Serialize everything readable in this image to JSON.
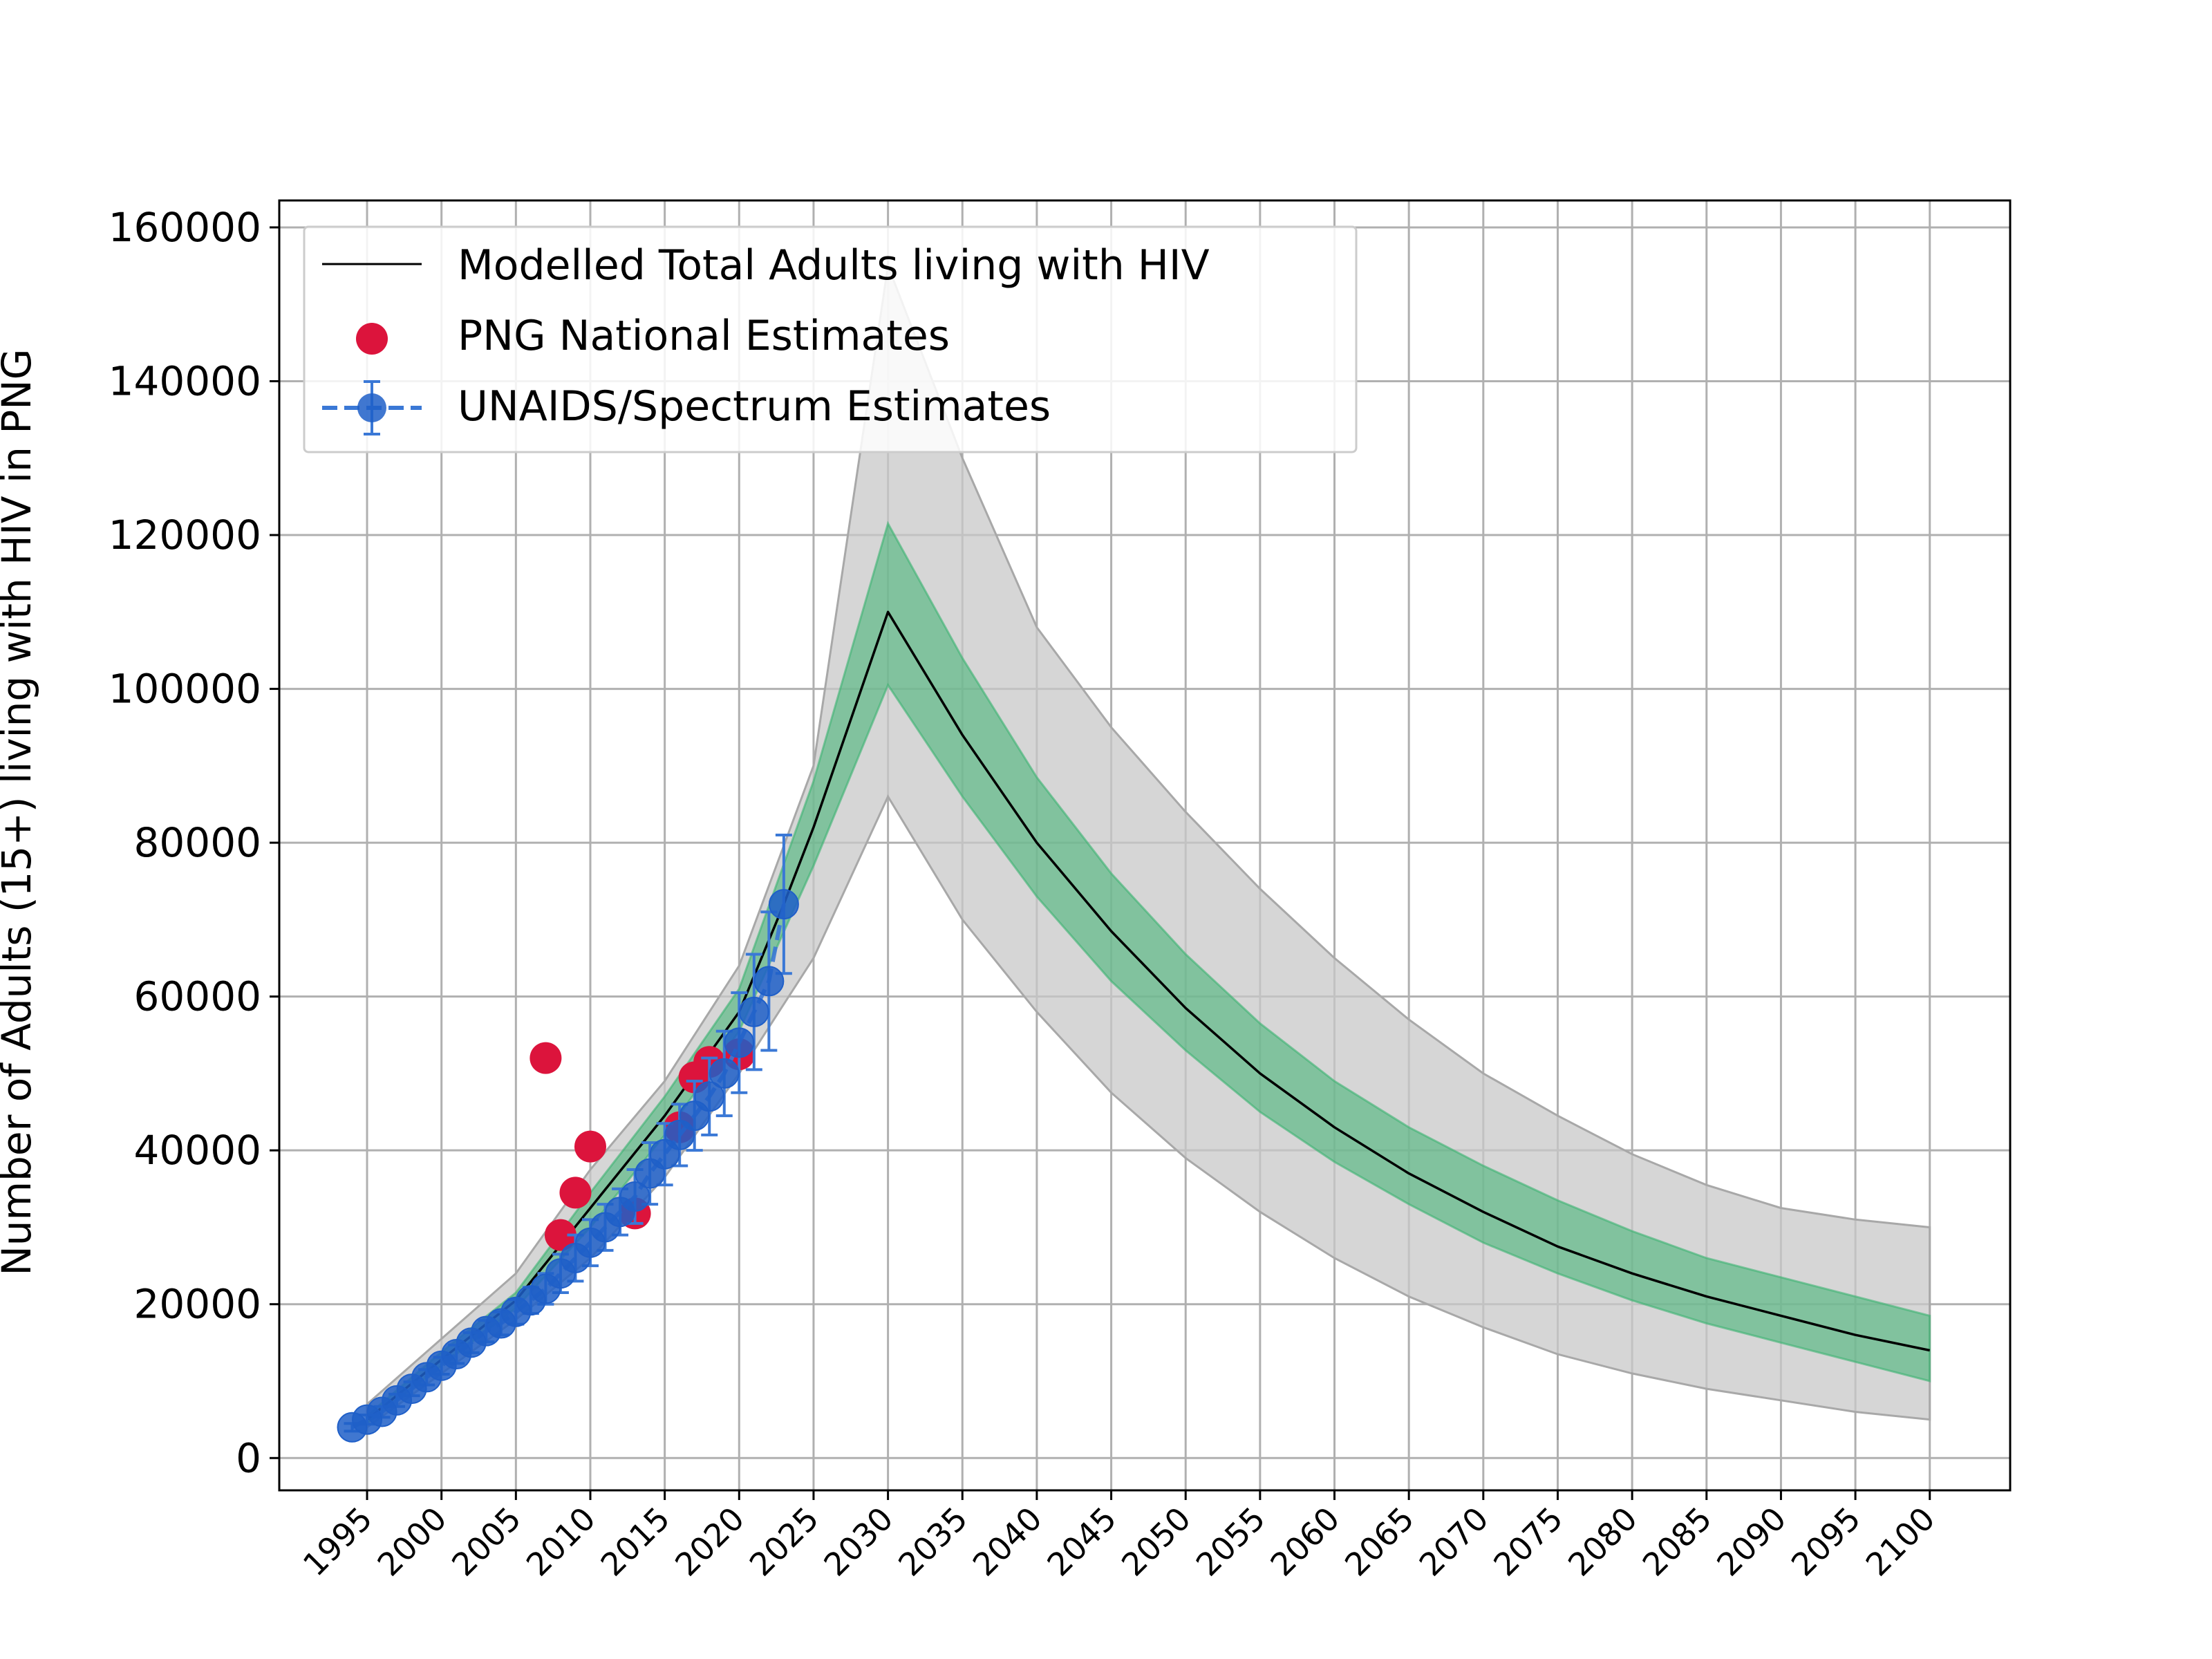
{
  "chart_data": {
    "type": "line",
    "title": "",
    "xlabel": "",
    "ylabel": "Number of Adults (15+) living with HIV in PNG",
    "xlim": [
      1989.1,
      2105.4
    ],
    "ylim": [
      -4200,
      163500
    ],
    "grid": true,
    "legend_position": "top-left",
    "x_ticks": [
      1995,
      2000,
      2005,
      2010,
      2015,
      2020,
      2025,
      2030,
      2035,
      2040,
      2045,
      2050,
      2055,
      2060,
      2065,
      2070,
      2075,
      2080,
      2085,
      2090,
      2095,
      2100
    ],
    "y_ticks": [
      0,
      20000,
      40000,
      60000,
      80000,
      100000,
      120000,
      140000,
      160000
    ],
    "colors": {
      "model_line": "#000000",
      "outer_band": "#c8c8c8",
      "inner_band": "#3cb371",
      "png_points": "#dc143c",
      "unaids_points": "#1f5fc8",
      "unaids_line": "#3a78d6"
    },
    "legend": [
      {
        "key": "model",
        "label": "Modelled Total Adults living with HIV"
      },
      {
        "key": "png",
        "label": "PNG National Estimates"
      },
      {
        "key": "unaids",
        "label": "UNAIDS/Spectrum Estimates"
      }
    ],
    "series": [
      {
        "name": "Modelled Total Adults living with HIV",
        "kind": "line",
        "x": [
          1995,
          2000,
          2005,
          2010,
          2015,
          2020,
          2023,
          2025,
          2030,
          2035,
          2040,
          2045,
          2050,
          2055,
          2060,
          2065,
          2070,
          2075,
          2080,
          2085,
          2090,
          2095,
          2100
        ],
        "y": [
          5000,
          12800,
          20500,
          32500,
          44500,
          58000,
          72000,
          82000,
          110000,
          94000,
          80000,
          68500,
          58500,
          50000,
          43000,
          37000,
          32000,
          27500,
          24000,
          21000,
          18500,
          16000,
          14000
        ]
      },
      {
        "name": "outer uncertainty band",
        "kind": "band",
        "x": [
          1995,
          2000,
          2005,
          2010,
          2015,
          2020,
          2025,
          2030,
          2035,
          2040,
          2045,
          2050,
          2055,
          2060,
          2065,
          2070,
          2075,
          2080,
          2085,
          2090,
          2095,
          2100
        ],
        "lower": [
          4000,
          11000,
          18000,
          26000,
          36500,
          50000,
          65000,
          86000,
          70000,
          58000,
          47500,
          39000,
          32000,
          26000,
          21000,
          17000,
          13500,
          11000,
          9000,
          7500,
          6000,
          5000
        ],
        "upper": [
          7000,
          15500,
          24000,
          37500,
          49000,
          64000,
          90000,
          155000,
          130000,
          108000,
          95000,
          84000,
          74000,
          65000,
          57000,
          50000,
          44500,
          39500,
          35500,
          32500,
          31000,
          30000
        ]
      },
      {
        "name": "inner uncertainty band",
        "kind": "band",
        "x": [
          1995,
          2000,
          2005,
          2010,
          2015,
          2020,
          2025,
          2030,
          2035,
          2040,
          2045,
          2050,
          2055,
          2060,
          2065,
          2070,
          2075,
          2080,
          2085,
          2090,
          2095,
          2100
        ],
        "lower": [
          4500,
          12000,
          19500,
          30000,
          42000,
          55500,
          77000,
          100500,
          86000,
          73000,
          62000,
          53000,
          45000,
          38500,
          33000,
          28000,
          24000,
          20500,
          17500,
          15000,
          12500,
          10000
        ],
        "upper": [
          5500,
          13800,
          21500,
          34500,
          47000,
          61000,
          88000,
          121500,
          104000,
          88500,
          76000,
          65500,
          56500,
          49000,
          43000,
          38000,
          33500,
          29500,
          26000,
          23500,
          21000,
          18500
        ]
      },
      {
        "name": "PNG National Estimates",
        "kind": "scatter",
        "x": [
          2007,
          2008,
          2009,
          2010,
          2013,
          2016,
          2017,
          2018,
          2020
        ],
        "y": [
          52000,
          29000,
          34500,
          40500,
          31800,
          43000,
          49500,
          51500,
          52500
        ]
      },
      {
        "name": "UNAIDS/Spectrum Estimates",
        "kind": "errorbar",
        "x": [
          1994,
          1995,
          1996,
          1997,
          1998,
          1999,
          2000,
          2001,
          2002,
          2003,
          2004,
          2005,
          2006,
          2007,
          2008,
          2009,
          2010,
          2011,
          2012,
          2013,
          2014,
          2015,
          2016,
          2017,
          2018,
          2019,
          2020,
          2021,
          2022,
          2023
        ],
        "y": [
          4000,
          5000,
          6000,
          7500,
          9000,
          10500,
          12000,
          13500,
          15000,
          16500,
          17500,
          19000,
          20500,
          22000,
          24000,
          26000,
          28000,
          30000,
          32000,
          34000,
          37000,
          39500,
          42000,
          44500,
          47000,
          50000,
          54000,
          58000,
          62000,
          72000
        ],
        "err": [
          500,
          600,
          700,
          800,
          900,
          1000,
          1100,
          1200,
          1300,
          1400,
          1500,
          1600,
          1700,
          2000,
          2500,
          3000,
          3000,
          3000,
          3000,
          3500,
          4000,
          4000,
          4000,
          4500,
          5000,
          5500,
          6500,
          7500,
          9000,
          9000
        ]
      }
    ]
  }
}
